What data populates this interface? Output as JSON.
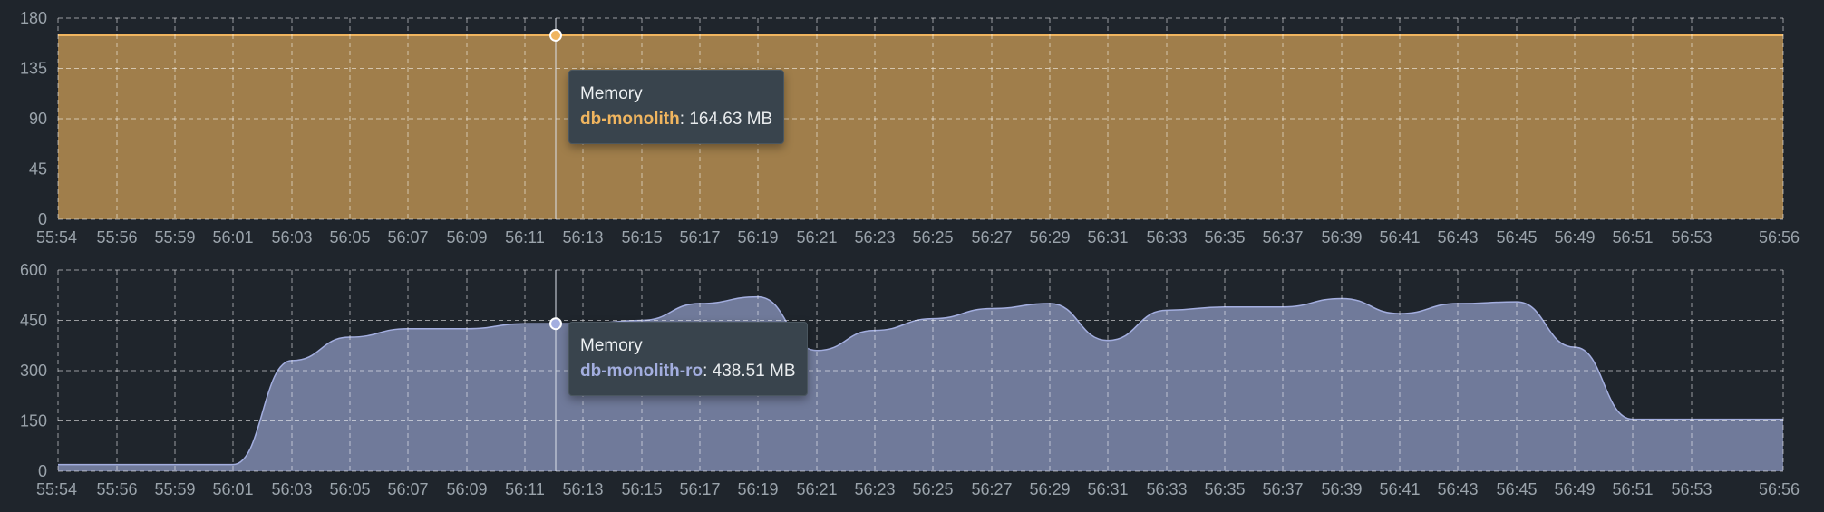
{
  "chart_data": [
    {
      "type": "area",
      "title": "",
      "ylim": [
        0,
        180
      ],
      "yticks": [
        "0",
        "45",
        "90",
        "135",
        "180"
      ],
      "xticks": [
        "55:54",
        "55:56",
        "55:59",
        "56:01",
        "56:03",
        "56:05",
        "56:07",
        "56:09",
        "56:11",
        "56:13",
        "56:15",
        "56:17",
        "56:19",
        "56:21",
        "56:23",
        "56:25",
        "56:27",
        "56:29",
        "56:31",
        "56:33",
        "56:35",
        "56:37",
        "56:39",
        "56:41",
        "56:43",
        "56:45",
        "56:49",
        "56:51",
        "56:53",
        "56:56"
      ],
      "grid": true,
      "series": [
        {
          "name": "db-monolith",
          "color": "#f0b55f",
          "values": [
            164.63,
            164.63,
            164.63,
            164.63,
            164.63,
            164.63,
            164.63,
            164.63,
            164.63,
            164.63,
            164.63,
            164.63,
            164.63,
            164.63,
            164.63,
            164.63,
            164.63,
            164.63,
            164.63,
            164.63,
            164.63,
            164.63,
            164.63,
            164.63,
            164.63,
            164.63,
            164.63,
            164.63,
            164.63,
            164.63
          ]
        }
      ],
      "tooltip": {
        "title": "Memory",
        "series": "db-monolith",
        "value": "164.63 MB",
        "at_tick": "56:12"
      }
    },
    {
      "type": "area",
      "title": "",
      "ylim": [
        0,
        600
      ],
      "yticks": [
        "0",
        "150",
        "300",
        "450",
        "600"
      ],
      "xticks": [
        "55:54",
        "55:56",
        "55:59",
        "56:01",
        "56:03",
        "56:05",
        "56:07",
        "56:09",
        "56:11",
        "56:13",
        "56:15",
        "56:17",
        "56:19",
        "56:21",
        "56:23",
        "56:25",
        "56:27",
        "56:29",
        "56:31",
        "56:33",
        "56:35",
        "56:37",
        "56:39",
        "56:41",
        "56:43",
        "56:45",
        "56:49",
        "56:51",
        "56:53",
        "56:56"
      ],
      "grid": true,
      "series": [
        {
          "name": "db-monolith-ro",
          "color": "#a3aedf",
          "values": [
            20,
            20,
            20,
            20,
            330,
            400,
            425,
            425,
            440,
            440,
            450,
            500,
            520,
            360,
            420,
            455,
            485,
            500,
            390,
            480,
            490,
            490,
            515,
            470,
            500,
            505,
            370,
            155,
            155,
            155
          ]
        }
      ],
      "tooltip": {
        "title": "Memory",
        "series": "db-monolith-ro",
        "value": "438.51 MB",
        "at_tick": "56:12"
      }
    }
  ]
}
